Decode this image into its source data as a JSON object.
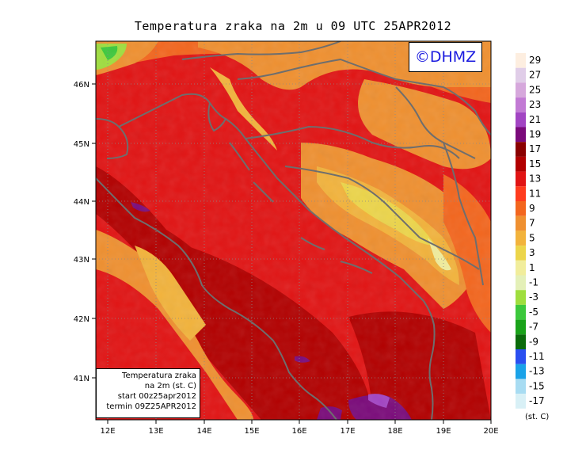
{
  "title": "Temperatura zraka na 2m u 09 UTC 25APR2012",
  "logo": "©DHMZ",
  "lon_ticks": [
    "12E",
    "13E",
    "14E",
    "15E",
    "16E",
    "17E",
    "18E",
    "19E",
    "20E"
  ],
  "lat_ticks": [
    "46N",
    "45N",
    "44N",
    "43N",
    "42N",
    "41N"
  ],
  "info_box": {
    "line1": "Temperatura zraka",
    "line2": "na 2m (st. C)",
    "line3": "start 00z25apr2012",
    "line4": "termin 09Z25APR2012"
  },
  "colorbar": {
    "labels": [
      "29",
      "27",
      "25",
      "23",
      "21",
      "19",
      "17",
      "15",
      "13",
      "11",
      "9",
      "7",
      "5",
      "3",
      "1",
      "-1",
      "-3",
      "-5",
      "-7",
      "-9",
      "-11",
      "-13",
      "-15",
      "-17"
    ],
    "colors": [
      "#fdeee0",
      "#e0cde8",
      "#d6a8dc",
      "#c27ad4",
      "#a245c3",
      "#7a0a7a",
      "#8a0000",
      "#b20000",
      "#e11414",
      "#ff3c1e",
      "#f3661e",
      "#ef9030",
      "#f2b33c",
      "#ecd54a",
      "#f1ed9c",
      "#e4f0b8",
      "#9fde3e",
      "#3cc83c",
      "#1aa31a",
      "#0b6b0b",
      "#2a4ff0",
      "#1aa2e8",
      "#a8dcf2",
      "#d8f0f6"
    ],
    "unit": "(st. C)"
  }
}
